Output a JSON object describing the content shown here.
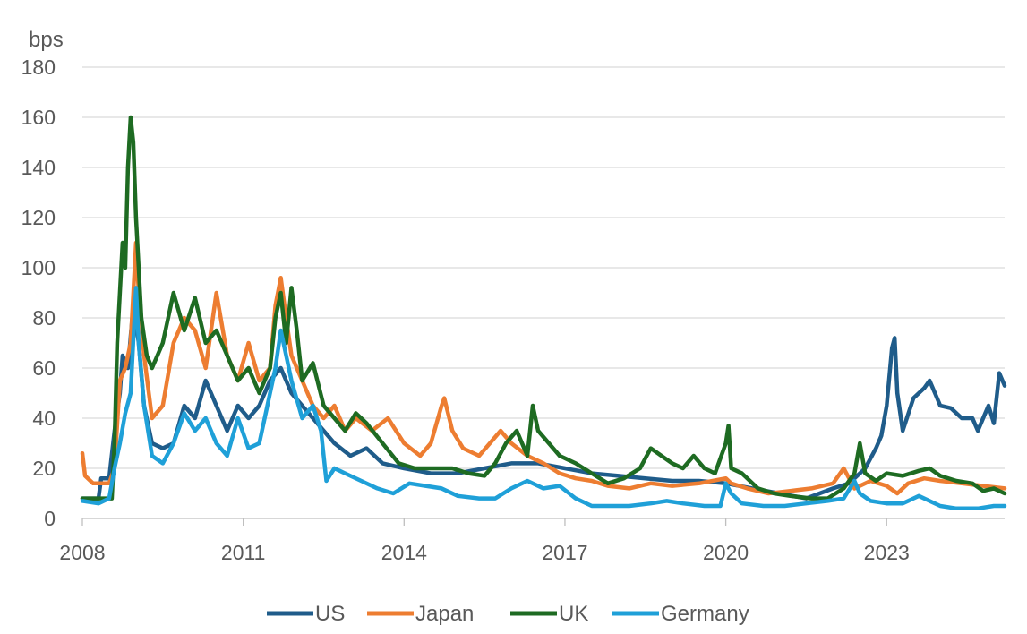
{
  "chart_data": {
    "type": "line",
    "ylabel": "bps",
    "ylim": [
      0,
      180
    ],
    "yticks": [
      0,
      20,
      40,
      60,
      80,
      100,
      120,
      140,
      160,
      180
    ],
    "xlim": [
      2008,
      2025.2
    ],
    "xticks": [
      2008,
      2011,
      2014,
      2017,
      2020,
      2023
    ],
    "grid": true,
    "legend_position": "bottom",
    "series": [
      {
        "name": "US",
        "color": "#1f5c8a",
        "points": [
          [
            2008.0,
            8
          ],
          [
            2008.3,
            8
          ],
          [
            2008.35,
            16
          ],
          [
            2008.5,
            16
          ],
          [
            2008.6,
            35
          ],
          [
            2008.7,
            50
          ],
          [
            2008.75,
            65
          ],
          [
            2008.85,
            60
          ],
          [
            2008.95,
            85
          ],
          [
            2009.05,
            70
          ],
          [
            2009.15,
            45
          ],
          [
            2009.3,
            30
          ],
          [
            2009.5,
            28
          ],
          [
            2009.7,
            30
          ],
          [
            2009.9,
            45
          ],
          [
            2010.1,
            40
          ],
          [
            2010.3,
            55
          ],
          [
            2010.5,
            45
          ],
          [
            2010.7,
            35
          ],
          [
            2010.9,
            45
          ],
          [
            2011.1,
            40
          ],
          [
            2011.3,
            45
          ],
          [
            2011.5,
            55
          ],
          [
            2011.7,
            60
          ],
          [
            2011.9,
            50
          ],
          [
            2012.1,
            45
          ],
          [
            2012.3,
            40
          ],
          [
            2012.5,
            35
          ],
          [
            2012.7,
            30
          ],
          [
            2013.0,
            25
          ],
          [
            2013.3,
            28
          ],
          [
            2013.6,
            22
          ],
          [
            2014.0,
            20
          ],
          [
            2014.5,
            18
          ],
          [
            2015.0,
            18
          ],
          [
            2015.5,
            20
          ],
          [
            2016.0,
            22
          ],
          [
            2016.5,
            22
          ],
          [
            2017.0,
            20
          ],
          [
            2017.5,
            18
          ],
          [
            2018.0,
            17
          ],
          [
            2018.5,
            16
          ],
          [
            2019.0,
            15
          ],
          [
            2019.5,
            15
          ],
          [
            2020.0,
            14
          ],
          [
            2020.5,
            12
          ],
          [
            2021.0,
            10
          ],
          [
            2021.5,
            8
          ],
          [
            2022.0,
            12
          ],
          [
            2022.3,
            14
          ],
          [
            2022.6,
            20
          ],
          [
            2022.8,
            28
          ],
          [
            2022.9,
            33
          ],
          [
            2023.0,
            45
          ],
          [
            2023.1,
            68
          ],
          [
            2023.15,
            72
          ],
          [
            2023.2,
            50
          ],
          [
            2023.3,
            35
          ],
          [
            2023.5,
            48
          ],
          [
            2023.7,
            52
          ],
          [
            2023.8,
            55
          ],
          [
            2023.9,
            50
          ],
          [
            2024.0,
            45
          ],
          [
            2024.2,
            44
          ],
          [
            2024.4,
            40
          ],
          [
            2024.6,
            40
          ],
          [
            2024.7,
            35
          ],
          [
            2024.9,
            45
          ],
          [
            2025.0,
            38
          ],
          [
            2025.1,
            58
          ],
          [
            2025.2,
            53
          ]
        ]
      },
      {
        "name": "Japan",
        "color": "#ed7d31",
        "points": [
          [
            2008.0,
            26
          ],
          [
            2008.05,
            17
          ],
          [
            2008.2,
            14
          ],
          [
            2008.5,
            14
          ],
          [
            2008.6,
            20
          ],
          [
            2008.7,
            55
          ],
          [
            2008.8,
            60
          ],
          [
            2008.9,
            70
          ],
          [
            2009.0,
            110
          ],
          [
            2009.05,
            90
          ],
          [
            2009.15,
            65
          ],
          [
            2009.3,
            40
          ],
          [
            2009.5,
            45
          ],
          [
            2009.7,
            70
          ],
          [
            2009.9,
            80
          ],
          [
            2010.1,
            75
          ],
          [
            2010.3,
            60
          ],
          [
            2010.5,
            90
          ],
          [
            2010.7,
            65
          ],
          [
            2010.9,
            55
          ],
          [
            2011.1,
            70
          ],
          [
            2011.3,
            55
          ],
          [
            2011.5,
            60
          ],
          [
            2011.6,
            85
          ],
          [
            2011.7,
            96
          ],
          [
            2011.8,
            80
          ],
          [
            2011.9,
            65
          ],
          [
            2012.1,
            55
          ],
          [
            2012.3,
            45
          ],
          [
            2012.5,
            40
          ],
          [
            2012.7,
            45
          ],
          [
            2012.9,
            35
          ],
          [
            2013.1,
            40
          ],
          [
            2013.4,
            35
          ],
          [
            2013.7,
            40
          ],
          [
            2014.0,
            30
          ],
          [
            2014.3,
            25
          ],
          [
            2014.5,
            30
          ],
          [
            2014.7,
            45
          ],
          [
            2014.75,
            48
          ],
          [
            2014.9,
            35
          ],
          [
            2015.1,
            28
          ],
          [
            2015.4,
            25
          ],
          [
            2015.6,
            30
          ],
          [
            2015.8,
            35
          ],
          [
            2016.0,
            30
          ],
          [
            2016.3,
            25
          ],
          [
            2016.6,
            22
          ],
          [
            2016.9,
            18
          ],
          [
            2017.2,
            16
          ],
          [
            2017.5,
            15
          ],
          [
            2017.8,
            13
          ],
          [
            2018.2,
            12
          ],
          [
            2018.6,
            14
          ],
          [
            2019.0,
            13
          ],
          [
            2019.5,
            14
          ],
          [
            2020.0,
            16
          ],
          [
            2020.1,
            14
          ],
          [
            2020.4,
            12
          ],
          [
            2020.8,
            10
          ],
          [
            2021.2,
            11
          ],
          [
            2021.6,
            12
          ],
          [
            2022.0,
            14
          ],
          [
            2022.2,
            20
          ],
          [
            2022.4,
            12
          ],
          [
            2022.7,
            15
          ],
          [
            2023.0,
            13
          ],
          [
            2023.2,
            10
          ],
          [
            2023.4,
            14
          ],
          [
            2023.7,
            16
          ],
          [
            2024.0,
            15
          ],
          [
            2024.4,
            14
          ],
          [
            2024.8,
            13
          ],
          [
            2025.2,
            12
          ]
        ]
      },
      {
        "name": "UK",
        "color": "#1e6b22",
        "points": [
          [
            2008.0,
            8
          ],
          [
            2008.3,
            8
          ],
          [
            2008.55,
            8
          ],
          [
            2008.6,
            30
          ],
          [
            2008.65,
            70
          ],
          [
            2008.7,
            90
          ],
          [
            2008.75,
            110
          ],
          [
            2008.8,
            100
          ],
          [
            2008.85,
            140
          ],
          [
            2008.9,
            160
          ],
          [
            2008.95,
            150
          ],
          [
            2009.0,
            120
          ],
          [
            2009.05,
            100
          ],
          [
            2009.1,
            80
          ],
          [
            2009.2,
            65
          ],
          [
            2009.3,
            60
          ],
          [
            2009.5,
            70
          ],
          [
            2009.7,
            90
          ],
          [
            2009.9,
            75
          ],
          [
            2010.1,
            88
          ],
          [
            2010.3,
            70
          ],
          [
            2010.5,
            75
          ],
          [
            2010.7,
            65
          ],
          [
            2010.9,
            55
          ],
          [
            2011.1,
            60
          ],
          [
            2011.3,
            50
          ],
          [
            2011.5,
            60
          ],
          [
            2011.6,
            80
          ],
          [
            2011.7,
            90
          ],
          [
            2011.8,
            70
          ],
          [
            2011.9,
            92
          ],
          [
            2012.0,
            75
          ],
          [
            2012.1,
            55
          ],
          [
            2012.3,
            62
          ],
          [
            2012.5,
            45
          ],
          [
            2012.7,
            40
          ],
          [
            2012.9,
            35
          ],
          [
            2013.1,
            42
          ],
          [
            2013.3,
            38
          ],
          [
            2013.6,
            30
          ],
          [
            2013.9,
            22
          ],
          [
            2014.2,
            20
          ],
          [
            2014.6,
            20
          ],
          [
            2014.9,
            20
          ],
          [
            2015.2,
            18
          ],
          [
            2015.5,
            17
          ],
          [
            2015.7,
            22
          ],
          [
            2015.9,
            30
          ],
          [
            2016.1,
            35
          ],
          [
            2016.3,
            25
          ],
          [
            2016.4,
            45
          ],
          [
            2016.5,
            35
          ],
          [
            2016.7,
            30
          ],
          [
            2016.9,
            25
          ],
          [
            2017.2,
            22
          ],
          [
            2017.5,
            18
          ],
          [
            2017.8,
            14
          ],
          [
            2018.1,
            16
          ],
          [
            2018.4,
            20
          ],
          [
            2018.6,
            28
          ],
          [
            2018.8,
            25
          ],
          [
            2019.0,
            22
          ],
          [
            2019.2,
            20
          ],
          [
            2019.4,
            25
          ],
          [
            2019.6,
            20
          ],
          [
            2019.8,
            18
          ],
          [
            2020.0,
            30
          ],
          [
            2020.05,
            37
          ],
          [
            2020.1,
            20
          ],
          [
            2020.3,
            18
          ],
          [
            2020.6,
            12
          ],
          [
            2020.9,
            10
          ],
          [
            2021.2,
            9
          ],
          [
            2021.6,
            8
          ],
          [
            2021.9,
            8
          ],
          [
            2022.2,
            12
          ],
          [
            2022.4,
            18
          ],
          [
            2022.5,
            30
          ],
          [
            2022.6,
            18
          ],
          [
            2022.8,
            15
          ],
          [
            2023.0,
            18
          ],
          [
            2023.3,
            17
          ],
          [
            2023.6,
            19
          ],
          [
            2023.8,
            20
          ],
          [
            2024.0,
            17
          ],
          [
            2024.3,
            15
          ],
          [
            2024.6,
            14
          ],
          [
            2024.8,
            11
          ],
          [
            2025.0,
            12
          ],
          [
            2025.2,
            10
          ]
        ]
      },
      {
        "name": "Germany",
        "color": "#1fa0d8",
        "points": [
          [
            2008.0,
            7
          ],
          [
            2008.3,
            6
          ],
          [
            2008.5,
            8
          ],
          [
            2008.6,
            20
          ],
          [
            2008.7,
            30
          ],
          [
            2008.8,
            42
          ],
          [
            2008.9,
            50
          ],
          [
            2009.0,
            92
          ],
          [
            2009.05,
            70
          ],
          [
            2009.15,
            45
          ],
          [
            2009.3,
            25
          ],
          [
            2009.5,
            22
          ],
          [
            2009.7,
            30
          ],
          [
            2009.9,
            42
          ],
          [
            2010.1,
            35
          ],
          [
            2010.3,
            40
          ],
          [
            2010.5,
            30
          ],
          [
            2010.7,
            25
          ],
          [
            2010.9,
            40
          ],
          [
            2011.1,
            28
          ],
          [
            2011.3,
            30
          ],
          [
            2011.5,
            50
          ],
          [
            2011.6,
            60
          ],
          [
            2011.7,
            75
          ],
          [
            2011.8,
            65
          ],
          [
            2011.9,
            55
          ],
          [
            2012.1,
            40
          ],
          [
            2012.3,
            45
          ],
          [
            2012.45,
            35
          ],
          [
            2012.55,
            15
          ],
          [
            2012.7,
            20
          ],
          [
            2012.9,
            18
          ],
          [
            2013.2,
            15
          ],
          [
            2013.5,
            12
          ],
          [
            2013.8,
            10
          ],
          [
            2014.1,
            14
          ],
          [
            2014.4,
            13
          ],
          [
            2014.7,
            12
          ],
          [
            2015.0,
            9
          ],
          [
            2015.4,
            8
          ],
          [
            2015.7,
            8
          ],
          [
            2016.0,
            12
          ],
          [
            2016.3,
            15
          ],
          [
            2016.6,
            12
          ],
          [
            2016.9,
            13
          ],
          [
            2017.2,
            8
          ],
          [
            2017.5,
            5
          ],
          [
            2017.9,
            5
          ],
          [
            2018.2,
            5
          ],
          [
            2018.6,
            6
          ],
          [
            2018.9,
            7
          ],
          [
            2019.2,
            6
          ],
          [
            2019.6,
            5
          ],
          [
            2019.9,
            5
          ],
          [
            2020.0,
            14
          ],
          [
            2020.1,
            10
          ],
          [
            2020.3,
            6
          ],
          [
            2020.7,
            5
          ],
          [
            2021.1,
            5
          ],
          [
            2021.5,
            6
          ],
          [
            2021.9,
            7
          ],
          [
            2022.2,
            8
          ],
          [
            2022.4,
            15
          ],
          [
            2022.5,
            10
          ],
          [
            2022.7,
            7
          ],
          [
            2023.0,
            6
          ],
          [
            2023.3,
            6
          ],
          [
            2023.6,
            9
          ],
          [
            2023.8,
            7
          ],
          [
            2024.0,
            5
          ],
          [
            2024.3,
            4
          ],
          [
            2024.7,
            4
          ],
          [
            2025.0,
            5
          ],
          [
            2025.2,
            5
          ]
        ]
      }
    ]
  }
}
